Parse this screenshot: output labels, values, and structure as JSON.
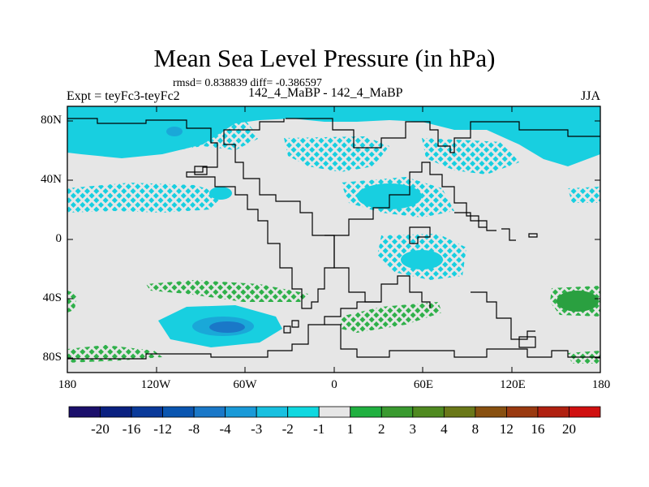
{
  "title": "Mean Sea Level Pressure (in hPa)",
  "stats": "rmsd= 0.838839  diff= -0.386597",
  "experiment": "Expt = teyFc3-teyFc2",
  "run_label": "142_4_MaBP - 142_4_MaBP",
  "season": "JJA",
  "lat_ticks": [
    "80N",
    "40N",
    "0",
    "40S",
    "80S"
  ],
  "lon_ticks": [
    "180",
    "120W",
    "60W",
    "0",
    "60E",
    "120E",
    "180"
  ],
  "colorbar": {
    "colors": [
      "#1b0f6b",
      "#0a2080",
      "#0a3a9a",
      "#0a55b0",
      "#1a78c8",
      "#1a9ad8",
      "#18c0e0",
      "#10d8e0",
      "#e6e6e6",
      "#20b040",
      "#3a9a30",
      "#4f8a20",
      "#6a7818",
      "#885010",
      "#9a3a10",
      "#b02010",
      "#d01010"
    ],
    "labels": [
      "-20",
      "-16",
      "-12",
      "-8",
      "-4",
      "-3",
      "-2",
      "-1",
      "1",
      "2",
      "3",
      "4",
      "8",
      "12",
      "16",
      "20"
    ]
  },
  "map_colors": {
    "background": "#e6e6e6",
    "cyan": "#18cfe0",
    "cyan_dark": "#1aa8d8",
    "blue": "#1a78c8",
    "green": "#2fb04a",
    "green_dark": "#2aa040"
  }
}
